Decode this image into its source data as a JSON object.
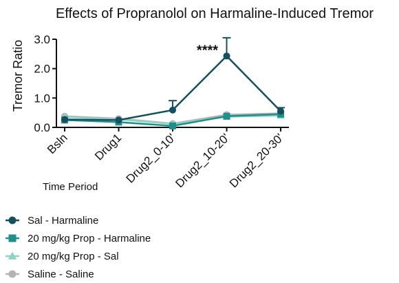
{
  "chart_data": {
    "type": "line",
    "title": "Effects of Propranolol on Harmaline-Induced Tremor",
    "xlabel": "Time Period",
    "ylabel": "Tremor Ratio",
    "categories": [
      "Bsln",
      "Drug1",
      "Drug2_0-10'",
      "Drug2_10-20'",
      "Drug2_20-30'"
    ],
    "ylim": [
      0,
      3.0
    ],
    "yticks": [
      "0.0",
      "1.0",
      "2.0",
      "3.0"
    ],
    "grid": false,
    "legend_placement": "bottom-left",
    "series": [
      {
        "name": "Sal - Harmaline",
        "marker": "circle",
        "color": "#14505e",
        "values": [
          0.27,
          0.25,
          0.59,
          2.43,
          0.55
        ],
        "errors": [
          0.0,
          0.0,
          0.32,
          0.62,
          0.12
        ]
      },
      {
        "name": "20 mg/kg Prop - Harmaline",
        "marker": "square",
        "color": "#1f8f8c",
        "values": [
          0.25,
          0.18,
          0.05,
          0.38,
          0.45
        ],
        "errors": [
          0.0,
          0.0,
          0.0,
          0.0,
          0.0
        ]
      },
      {
        "name": "20 mg/kg Prop - Sal",
        "marker": "triangle",
        "color": "#8fd3c4",
        "values": [
          0.36,
          0.27,
          0.12,
          0.36,
          0.4
        ],
        "errors": [
          0.0,
          0.0,
          0.0,
          0.0,
          0.0
        ]
      },
      {
        "name": "Saline - Saline",
        "marker": "circle",
        "color": "#b4b4b4",
        "values": [
          0.38,
          0.3,
          0.13,
          0.43,
          0.48
        ],
        "errors": [
          0.0,
          0.0,
          0.0,
          0.0,
          0.0
        ]
      }
    ],
    "annotations": [
      {
        "text": "****",
        "category": "Drug2_10-20'"
      }
    ]
  }
}
